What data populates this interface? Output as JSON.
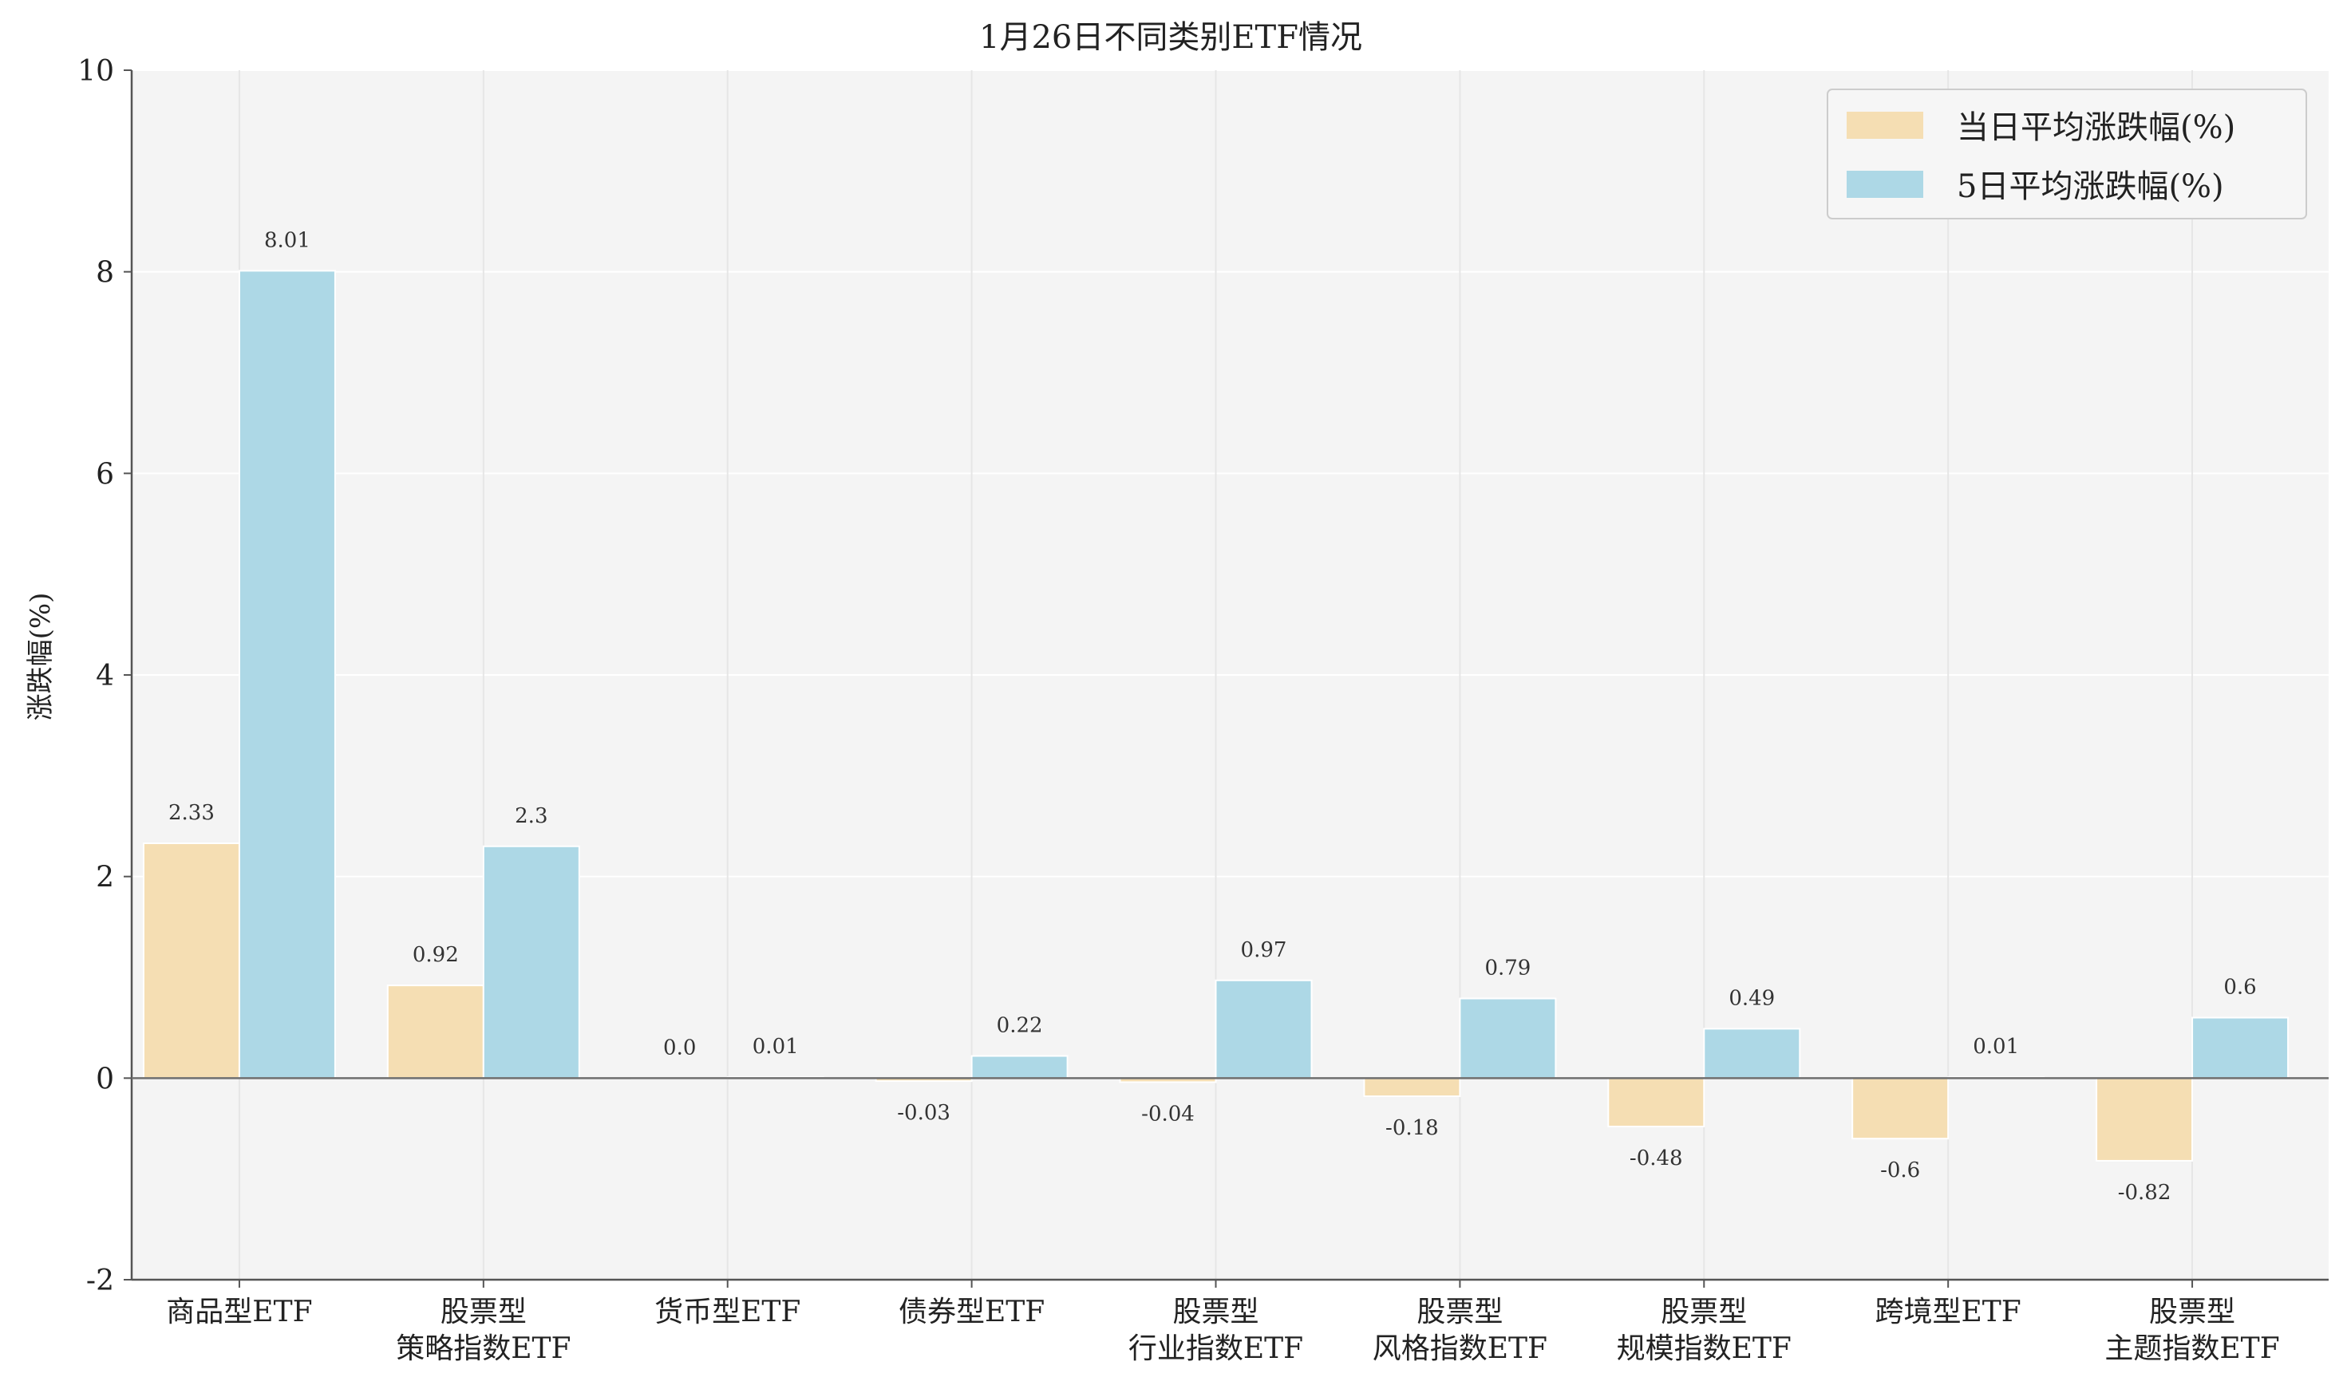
{
  "chart_data": {
    "type": "bar",
    "title": "1月26日不同类别ETF情况",
    "xlabel": "",
    "ylabel": "涨跌幅(%)",
    "ylim": [
      -2,
      10
    ],
    "yticks": [
      -2,
      0,
      2,
      4,
      6,
      8,
      10
    ],
    "grid": true,
    "legend_position": "top-right",
    "categories": [
      [
        "商品型ETF"
      ],
      [
        "股票型",
        "策略指数ETF"
      ],
      [
        "货币型ETF"
      ],
      [
        "债券型ETF"
      ],
      [
        "股票型",
        "行业指数ETF"
      ],
      [
        "股票型",
        "风格指数ETF"
      ],
      [
        "股票型",
        "规模指数ETF"
      ],
      [
        "跨境型ETF"
      ],
      [
        "股票型",
        "主题指数ETF"
      ]
    ],
    "series": [
      {
        "name": "当日平均涨跌幅(%)",
        "color": "#f5deb3",
        "values": [
          2.33,
          0.92,
          0.0,
          -0.03,
          -0.04,
          -0.18,
          -0.48,
          -0.6,
          -0.82
        ],
        "labels": [
          "2.33",
          "0.92",
          "0.0",
          "-0.03",
          "-0.04",
          "-0.18",
          "-0.48",
          "-0.6",
          "-0.82"
        ]
      },
      {
        "name": "5日平均涨跌幅(%)",
        "color": "#add8e6",
        "values": [
          8.01,
          2.3,
          0.01,
          0.22,
          0.97,
          0.79,
          0.49,
          0.01,
          0.6
        ],
        "labels": [
          "8.01",
          "2.3",
          "0.01",
          "0.22",
          "0.97",
          "0.79",
          "0.49",
          "0.01",
          "0.6"
        ]
      }
    ],
    "colors": {
      "plot_background": "#f4f4f4",
      "grid": "#ffffff",
      "axis": "#555555"
    }
  }
}
